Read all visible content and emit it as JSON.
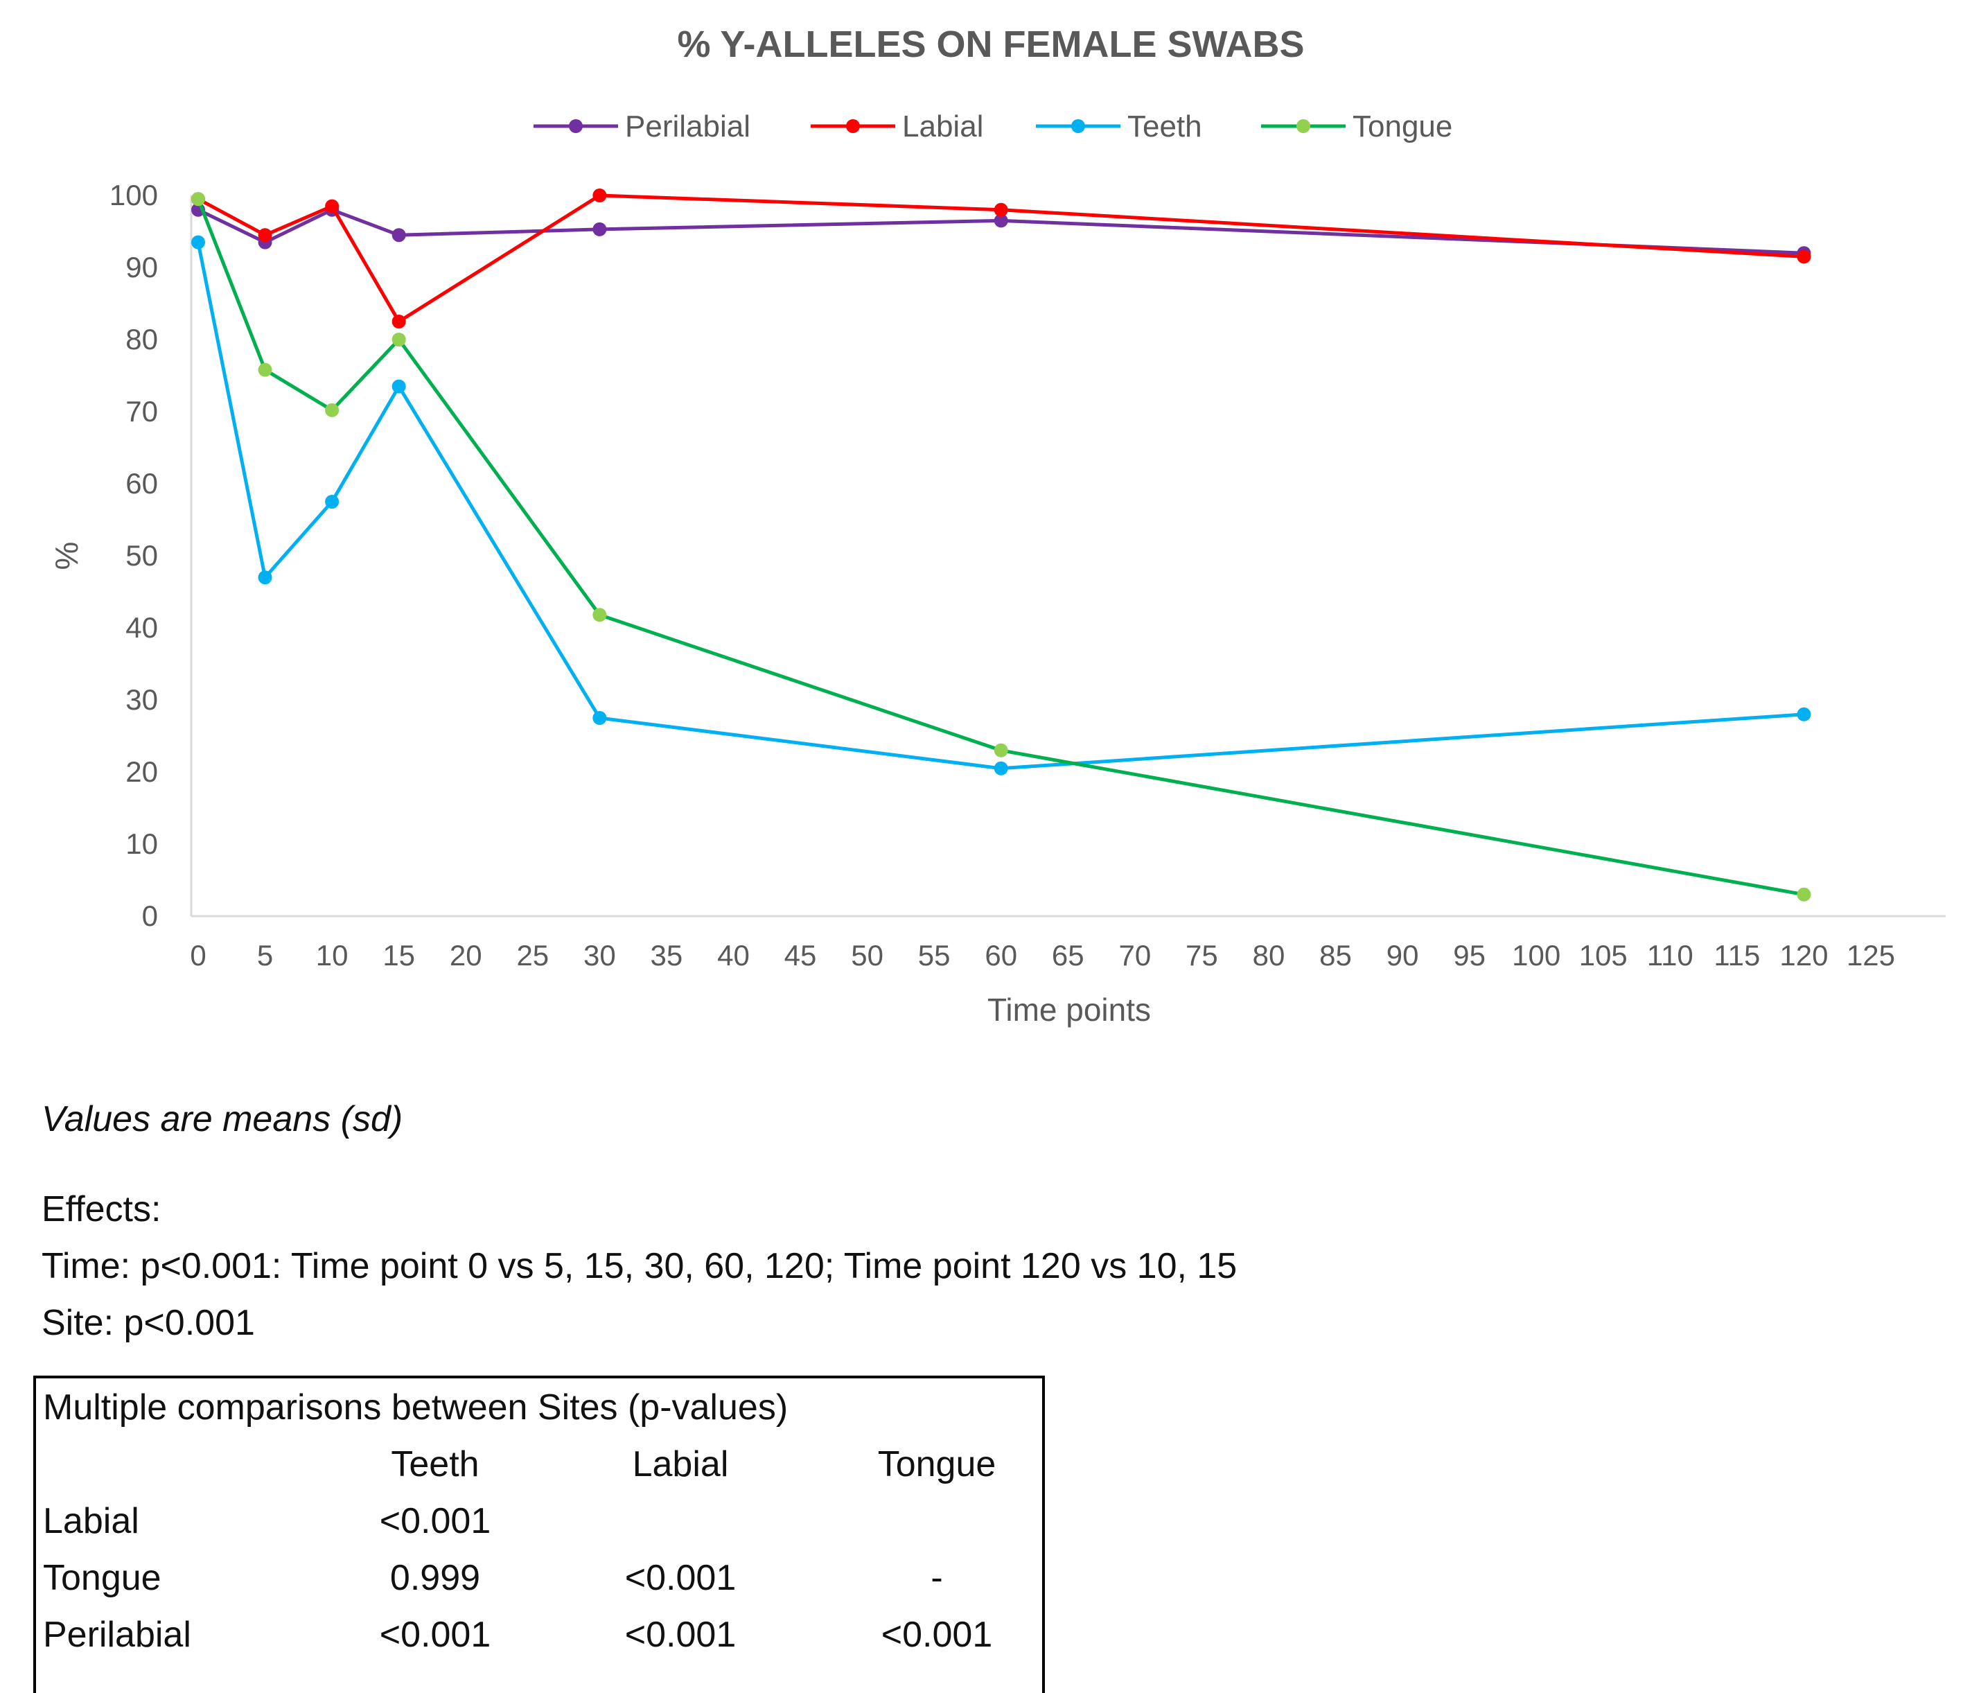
{
  "chart_data": {
    "type": "line",
    "title": "% Y-ALLELES ON FEMALE SWABS",
    "xlabel": "Time points",
    "ylabel": "%",
    "xlim": [
      0,
      125
    ],
    "ylim": [
      0,
      100
    ],
    "x_ticks": [
      "0",
      "5",
      "10",
      "15",
      "20",
      "25",
      "30",
      "35",
      "40",
      "45",
      "50",
      "55",
      "60",
      "65",
      "70",
      "75",
      "80",
      "85",
      "90",
      "95",
      "100",
      "105",
      "110",
      "115",
      "120",
      "125"
    ],
    "y_ticks": [
      "0",
      "10",
      "20",
      "30",
      "40",
      "50",
      "60",
      "70",
      "80",
      "90",
      "100"
    ],
    "x": [
      0,
      5,
      10,
      15,
      30,
      60,
      120
    ],
    "legend_position": "top",
    "grid": false,
    "series": [
      {
        "name": "Perilabial",
        "color": "#7030A0",
        "values": [
          98,
          93.5,
          98,
          94.5,
          95.3,
          96.5,
          92
        ]
      },
      {
        "name": "Labial",
        "color": "#FF0000",
        "values": [
          99.5,
          94.5,
          98.5,
          82.5,
          100,
          98,
          91.5
        ]
      },
      {
        "name": "Teeth",
        "color": "#00B0F0",
        "values": [
          93.5,
          47,
          57.5,
          73.5,
          27.5,
          20.5,
          28
        ]
      },
      {
        "name": "Tongue",
        "color": "#00B050",
        "marker_color": "#92D050",
        "values": [
          99.5,
          75.8,
          70.2,
          80,
          41.8,
          23,
          3
        ]
      }
    ]
  },
  "notes": {
    "values_note": "Values are means (sd)",
    "effects_heading": "Effects:",
    "time_effect": "Time: p<0.001: Time point 0 vs 5, 15, 30, 60, 120; Time point 120 vs 10, 15",
    "site_effect": "Site: p<0.001"
  },
  "comparisons": {
    "title": "Multiple comparisons between Sites (p-values)",
    "columns": [
      "Teeth",
      "Labial",
      "Tongue"
    ],
    "rows": [
      {
        "label": "Labial",
        "cells": [
          "<0.001",
          "",
          ""
        ]
      },
      {
        "label": "Tongue",
        "cells": [
          "0.999",
          "<0.001",
          "-"
        ]
      },
      {
        "label": "Perilabial",
        "cells": [
          "<0.001",
          "<0.001",
          "<0.001"
        ]
      }
    ]
  }
}
